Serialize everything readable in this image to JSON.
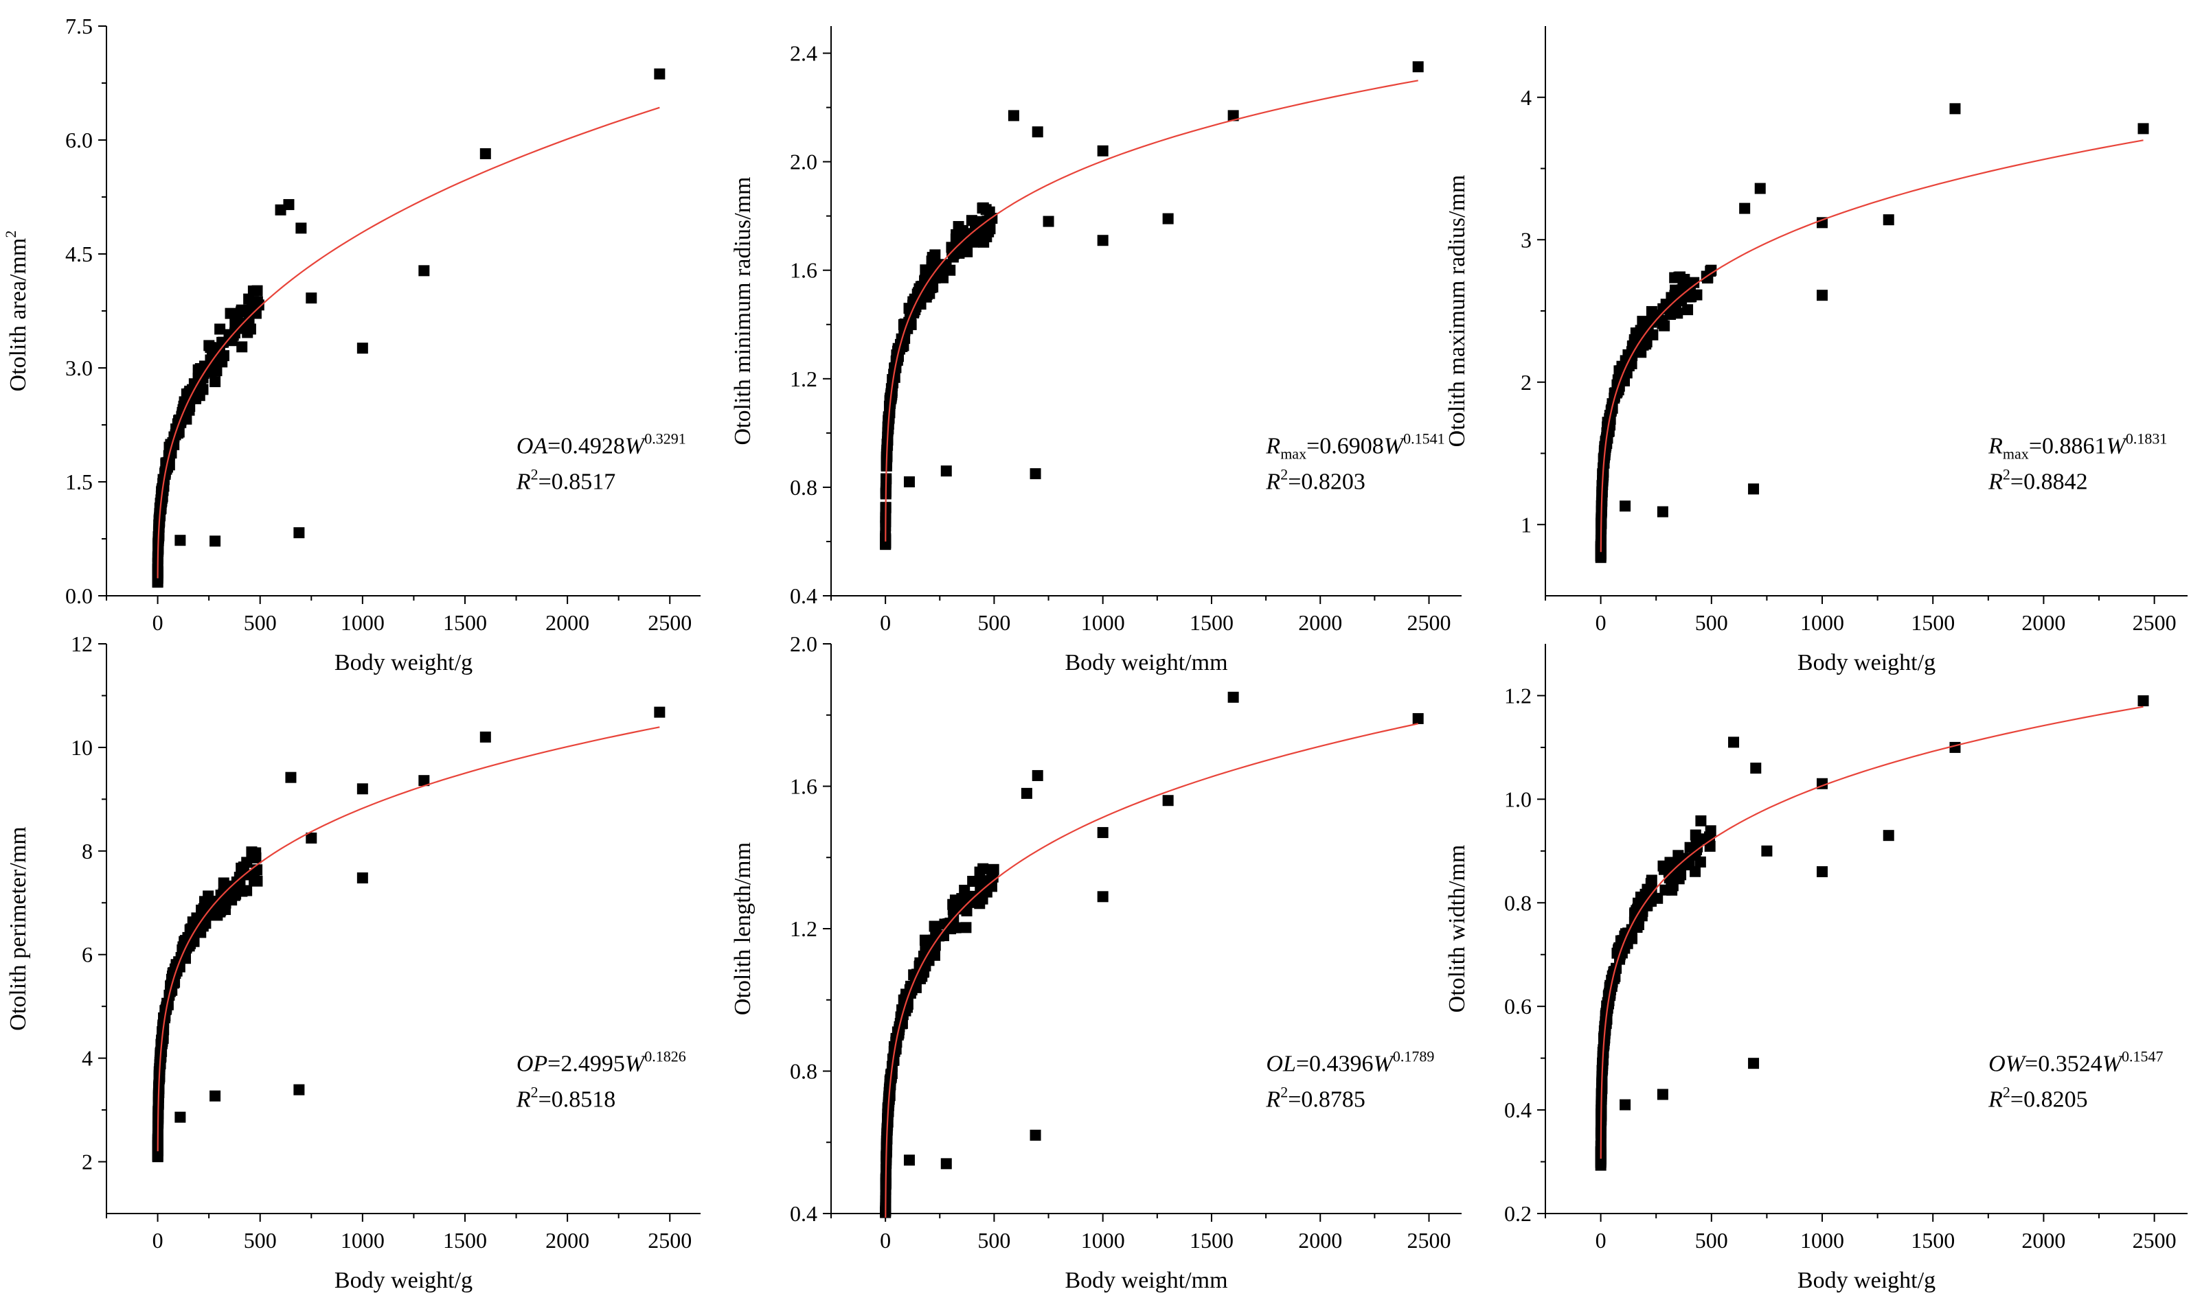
{
  "figure": {
    "background": "#ffffff"
  },
  "chart_data": [
    {
      "type": "scatter",
      "xlabel": "Body weight/g",
      "ylabel": "Otolith area/mm",
      "ylabel_sup": "2",
      "xlim": [
        -250,
        2650
      ],
      "ylim": [
        0,
        7.5
      ],
      "xticks": [
        0,
        500,
        1000,
        1500,
        2000,
        2500
      ],
      "yticks": [
        0.0,
        1.5,
        3.0,
        4.5,
        6.0,
        7.5
      ],
      "ytick_labels": [
        "0.0",
        "1.5",
        "3.0",
        "4.5",
        "6.0",
        "7.5"
      ],
      "fit": {
        "a": 0.4928,
        "b": 0.3291,
        "x_from": 0.1,
        "x_to": 2450,
        "color": "#e8443a"
      },
      "equation": {
        "lhs": "OA",
        "lhs_sub": "",
        "coef": "=0.4928",
        "var": "W",
        "exp": "0.3291",
        "r2_label": "R",
        "r2_sup": "2",
        "r2_value": "=0.8517",
        "pos": "lower-right"
      },
      "outliers": [
        [
          110,
          0.73
        ],
        [
          280,
          0.72
        ],
        [
          690,
          0.83
        ],
        [
          1000,
          3.26
        ],
        [
          1300,
          4.28
        ],
        [
          1600,
          5.82
        ],
        [
          2450,
          6.87
        ],
        [
          750,
          3.92
        ],
        [
          640,
          5.15
        ],
        [
          600,
          5.08
        ],
        [
          700,
          4.84
        ]
      ],
      "point_color": "#000000"
    },
    {
      "type": "scatter",
      "xlabel": "Body weight/mm",
      "ylabel": "Otolith minimum radius/mm",
      "ylabel_sup": "",
      "xlim": [
        -250,
        2650
      ],
      "ylim": [
        0.4,
        2.5
      ],
      "xticks": [
        0,
        500,
        1000,
        1500,
        2000,
        2500
      ],
      "yticks": [
        0.4,
        0.8,
        1.2,
        1.6,
        2.0,
        2.4
      ],
      "ytick_labels": [
        "0.4",
        "0.8",
        "1.2",
        "1.6",
        "2.0",
        "2.4"
      ],
      "fit": {
        "a": 0.6908,
        "b": 0.1541,
        "x_from": 0.4,
        "x_to": 2450,
        "color": "#e8443a"
      },
      "equation": {
        "lhs": "R",
        "lhs_sub": "max",
        "coef": "=0.6908",
        "var": "W",
        "exp": "0.1541",
        "r2_label": "R",
        "r2_sup": "2",
        "r2_value": "=0.8203",
        "pos": "lower-right"
      },
      "outliers": [
        [
          110,
          0.82
        ],
        [
          280,
          0.86
        ],
        [
          690,
          0.85
        ],
        [
          1000,
          1.71
        ],
        [
          1300,
          1.79
        ],
        [
          1600,
          2.17
        ],
        [
          2450,
          2.35
        ],
        [
          590,
          2.17
        ],
        [
          700,
          2.11
        ],
        [
          750,
          1.78
        ],
        [
          1000,
          2.04
        ]
      ],
      "point_color": "#000000"
    },
    {
      "type": "scatter",
      "xlabel": "Body weight/g",
      "ylabel": "Otolith maximum radius/mm",
      "ylabel_sup": "",
      "xlim": [
        -250,
        2650
      ],
      "ylim": [
        0.5,
        4.5
      ],
      "xticks": [
        0,
        500,
        1000,
        1500,
        2000,
        2500
      ],
      "yticks": [
        1,
        2,
        3,
        4
      ],
      "ytick_labels": [
        "1",
        "2",
        "3",
        "4"
      ],
      "fit": {
        "a": 0.8861,
        "b": 0.1831,
        "x_from": 0.6,
        "x_to": 2450,
        "color": "#e8443a"
      },
      "equation": {
        "lhs": "R",
        "lhs_sub": "max",
        "coef": "=0.8861",
        "var": "W",
        "exp": "0.1831",
        "r2_label": "R",
        "r2_sup": "2",
        "r2_value": "=0.8842",
        "pos": "lower-right"
      },
      "outliers": [
        [
          110,
          1.13
        ],
        [
          280,
          1.09
        ],
        [
          690,
          1.25
        ],
        [
          1000,
          2.61
        ],
        [
          1300,
          3.14
        ],
        [
          1600,
          3.92
        ],
        [
          2450,
          3.78
        ],
        [
          1000,
          3.12
        ],
        [
          720,
          3.36
        ],
        [
          650,
          3.22
        ]
      ],
      "point_color": "#000000"
    },
    {
      "type": "scatter",
      "xlabel": "Body weight/g",
      "ylabel": "Otolith perimeter/mm",
      "ylabel_sup": "",
      "xlim": [
        -250,
        2650
      ],
      "ylim": [
        1,
        12
      ],
      "xticks": [
        0,
        500,
        1000,
        1500,
        2000,
        2500
      ],
      "yticks": [
        2,
        4,
        6,
        8,
        10,
        12
      ],
      "ytick_labels": [
        "2",
        "4",
        "6",
        "8",
        "10",
        "12"
      ],
      "fit": {
        "a": 2.4995,
        "b": 0.1826,
        "x_from": 0.5,
        "x_to": 2450,
        "color": "#e8443a"
      },
      "equation": {
        "lhs": "OP",
        "lhs_sub": "",
        "coef": "=2.4995",
        "var": "W",
        "exp": "0.1826",
        "r2_label": "R",
        "r2_sup": "2",
        "r2_value": "=0.8518",
        "pos": "lower-right"
      },
      "outliers": [
        [
          110,
          2.86
        ],
        [
          280,
          3.27
        ],
        [
          690,
          3.39
        ],
        [
          1000,
          7.48
        ],
        [
          1300,
          9.36
        ],
        [
          1600,
          10.2
        ],
        [
          2450,
          10.68
        ],
        [
          1000,
          9.2
        ],
        [
          650,
          9.42
        ],
        [
          750,
          8.25
        ]
      ],
      "point_color": "#000000"
    },
    {
      "type": "scatter",
      "xlabel": "Body weight/mm",
      "ylabel": "Otolith length/mm",
      "ylabel_sup": "",
      "xlim": [
        -250,
        2650
      ],
      "ylim": [
        0.4,
        2.0
      ],
      "xticks": [
        0,
        500,
        1000,
        1500,
        2000,
        2500
      ],
      "yticks": [
        0.4,
        0.8,
        1.2,
        1.6,
        2.0
      ],
      "ytick_labels": [
        "0.4",
        "0.8",
        "1.2",
        "1.6",
        "2.0"
      ],
      "fit": {
        "a": 0.4396,
        "b": 0.1789,
        "x_from": 0.5,
        "x_to": 2450,
        "color": "#e8443a"
      },
      "equation": {
        "lhs": "OL",
        "lhs_sub": "",
        "coef": "=0.4396",
        "var": "W",
        "exp": "0.1789",
        "r2_label": "R",
        "r2_sup": "2",
        "r2_value": "=0.8785",
        "pos": "lower-right"
      },
      "outliers": [
        [
          110,
          0.55
        ],
        [
          280,
          0.54
        ],
        [
          690,
          0.62
        ],
        [
          1000,
          1.29
        ],
        [
          1300,
          1.56
        ],
        [
          1600,
          1.85
        ],
        [
          2450,
          1.79
        ],
        [
          1000,
          1.47
        ],
        [
          700,
          1.63
        ],
        [
          650,
          1.58
        ]
      ],
      "point_color": "#000000"
    },
    {
      "type": "scatter",
      "xlabel": "Body weight/g",
      "ylabel": "Otolith width/mm",
      "ylabel_sup": "",
      "xlim": [
        -250,
        2650
      ],
      "ylim": [
        0.2,
        1.3
      ],
      "xticks": [
        0,
        500,
        1000,
        1500,
        2000,
        2500
      ],
      "yticks": [
        0.2,
        0.4,
        0.6,
        0.8,
        1.0,
        1.2
      ],
      "ytick_labels": [
        "0.2",
        "0.4",
        "0.6",
        "0.8",
        "1.0",
        "1.2"
      ],
      "fit": {
        "a": 0.3524,
        "b": 0.1547,
        "x_from": 0.4,
        "x_to": 2450,
        "color": "#e8443a"
      },
      "equation": {
        "lhs": "OW",
        "lhs_sub": "",
        "coef": "=0.3524",
        "var": "W",
        "exp": "0.1547",
        "r2_label": "R",
        "r2_sup": "2",
        "r2_value": "=0.8205",
        "pos": "lower-right"
      },
      "outliers": [
        [
          110,
          0.41
        ],
        [
          280,
          0.43
        ],
        [
          690,
          0.49
        ],
        [
          1000,
          0.86
        ],
        [
          1300,
          0.93
        ],
        [
          1600,
          1.1
        ],
        [
          2450,
          1.19
        ],
        [
          1000,
          1.03
        ],
        [
          600,
          1.11
        ],
        [
          700,
          1.06
        ],
        [
          750,
          0.9
        ]
      ],
      "point_color": "#000000"
    }
  ]
}
